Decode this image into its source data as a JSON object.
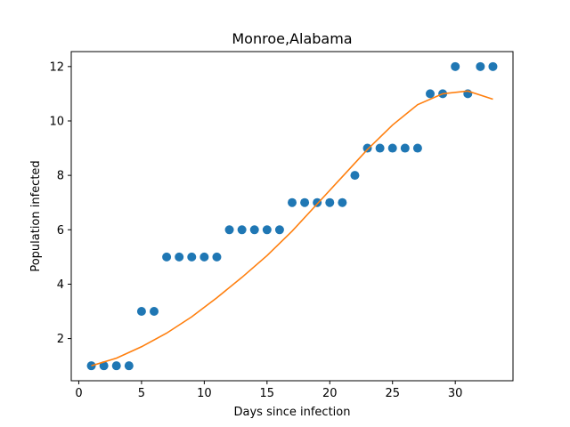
{
  "chart_data": {
    "type": "scatter",
    "title": "Monroe,Alabama",
    "xlabel": "Days since infection",
    "ylabel": "Population infected",
    "xlim": [
      -0.6,
      34.6
    ],
    "ylim": [
      0.45,
      12.55
    ],
    "xticks": [
      0,
      5,
      10,
      15,
      20,
      25,
      30
    ],
    "yticks": [
      2,
      4,
      6,
      8,
      10,
      12
    ],
    "grid": false,
    "series": [
      {
        "kind": "scatter",
        "color": "#1f77b4",
        "x": [
          1,
          2,
          3,
          4,
          5,
          6,
          7,
          8,
          9,
          10,
          11,
          12,
          13,
          14,
          15,
          16,
          17,
          18,
          19,
          20,
          21,
          22,
          23,
          24,
          25,
          26,
          27,
          28,
          29,
          30,
          31,
          32,
          33
        ],
        "y": [
          1,
          1,
          1,
          1,
          3,
          3,
          5,
          5,
          5,
          5,
          5,
          6,
          6,
          6,
          6,
          6,
          7,
          7,
          7,
          7,
          7,
          8,
          9,
          9,
          9,
          9,
          9,
          11,
          11,
          12,
          11,
          12,
          12
        ]
      },
      {
        "kind": "line",
        "color": "#ff7f0e",
        "x": [
          1,
          3,
          5,
          7,
          9,
          11,
          13,
          15,
          17,
          19,
          21,
          23,
          25,
          27,
          29,
          31,
          33
        ],
        "y": [
          1.0,
          1.28,
          1.7,
          2.2,
          2.8,
          3.5,
          4.25,
          5.05,
          5.95,
          6.95,
          7.95,
          8.95,
          9.85,
          10.6,
          11.0,
          11.1,
          10.8
        ]
      }
    ]
  }
}
